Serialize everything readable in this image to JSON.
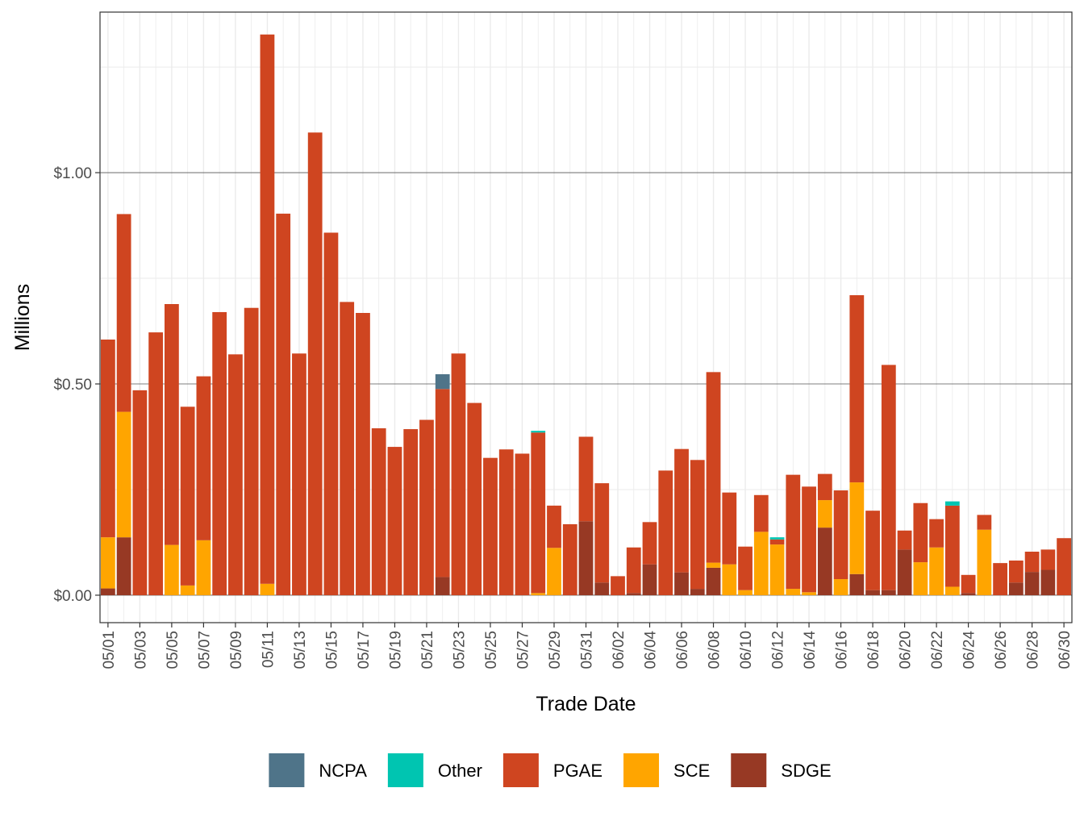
{
  "chart_data": {
    "type": "bar",
    "stacked": true,
    "xlabel": "Trade Date",
    "ylabel": "Millions",
    "ylim": [
      -0.065,
      1.38
    ],
    "yticks": [
      0,
      0.5,
      1.0
    ],
    "ytick_labels": [
      "$0.00",
      "$0.50",
      "$1.00"
    ],
    "grid": true,
    "legend_position": "bottom",
    "categories": [
      "05/01",
      "05/02",
      "05/03",
      "05/04",
      "05/05",
      "05/06",
      "05/07",
      "05/08",
      "05/09",
      "05/10",
      "05/11",
      "05/12",
      "05/13",
      "05/14",
      "05/15",
      "05/16",
      "05/17",
      "05/18",
      "05/19",
      "05/20",
      "05/21",
      "05/22",
      "05/23",
      "05/24",
      "05/25",
      "05/26",
      "05/27",
      "05/28",
      "05/29",
      "05/30",
      "05/31",
      "06/01",
      "06/02",
      "06/03",
      "06/04",
      "06/05",
      "06/06",
      "06/07",
      "06/08",
      "06/09",
      "06/10",
      "06/11",
      "06/12",
      "06/13",
      "06/14",
      "06/15",
      "06/16",
      "06/17",
      "06/18",
      "06/19",
      "06/20",
      "06/21",
      "06/22",
      "06/23",
      "06/24",
      "06/25",
      "06/26",
      "06/27",
      "06/28",
      "06/29",
      "06/30"
    ],
    "tick_labels": [
      "05/01",
      "05/03",
      "05/05",
      "05/07",
      "05/09",
      "05/11",
      "05/13",
      "05/15",
      "05/17",
      "05/19",
      "05/21",
      "05/23",
      "05/25",
      "05/27",
      "05/29",
      "05/31",
      "06/02",
      "06/04",
      "06/06",
      "06/08",
      "06/10",
      "06/12",
      "06/14",
      "06/16",
      "06/18",
      "06/20",
      "06/22",
      "06/24",
      "06/26",
      "06/28",
      "06/30"
    ],
    "series": [
      {
        "name": "SDGE",
        "color": "#973924",
        "values": [
          0.016,
          0.137,
          0,
          0,
          0,
          0,
          0,
          0,
          0,
          0,
          0,
          0,
          0,
          0,
          0,
          0,
          0,
          0,
          0,
          0,
          0,
          0.043,
          0,
          0,
          0,
          0,
          0,
          0,
          0,
          0,
          0.175,
          0.03,
          0,
          0.005,
          0.073,
          0,
          0.054,
          0.015,
          0.065,
          0,
          0,
          0,
          0,
          0,
          0,
          0.16,
          0,
          0.05,
          0.012,
          0.012,
          0.108,
          0,
          0,
          0,
          0.005,
          0,
          0,
          0.03,
          0.055,
          0.06,
          0
        ]
      },
      {
        "name": "SCE",
        "color": "#FFA500",
        "values": [
          0.121,
          0.297,
          0,
          0,
          0.119,
          0.023,
          0.13,
          0,
          0,
          0,
          0.027,
          0,
          0,
          0,
          0,
          0,
          0,
          0,
          0,
          0,
          0,
          0,
          0,
          0,
          0,
          0,
          0,
          0.005,
          0.112,
          0,
          0,
          0,
          0,
          0,
          0,
          0,
          0,
          0,
          0.012,
          0.073,
          0.012,
          0.15,
          0.12,
          0.015,
          0.007,
          0.065,
          0.038,
          0.217,
          0,
          0,
          0,
          0.078,
          0.113,
          0.02,
          0,
          0.155,
          0,
          0,
          0,
          0,
          0
        ]
      },
      {
        "name": "PGAE",
        "color": "#CF4520",
        "values": [
          0.468,
          0.468,
          0.485,
          0.622,
          0.57,
          0.423,
          0.388,
          0.67,
          0.57,
          0.68,
          1.3,
          0.903,
          0.572,
          1.095,
          0.858,
          0.694,
          0.668,
          0.395,
          0.351,
          0.393,
          0.415,
          0.445,
          0.572,
          0.455,
          0.325,
          0.345,
          0.335,
          0.38,
          0.1,
          0.168,
          0.2,
          0.235,
          0.045,
          0.108,
          0.1,
          0.295,
          0.292,
          0.305,
          0.451,
          0.17,
          0.103,
          0.087,
          0.012,
          0.27,
          0.25,
          0.062,
          0.21,
          0.443,
          0.188,
          0.533,
          0.045,
          0.14,
          0.067,
          0.192,
          0.043,
          0.035,
          0.076,
          0.052,
          0.048,
          0.048,
          0.135
        ]
      },
      {
        "name": "Other",
        "color": "#00C5B1",
        "values": [
          0,
          0,
          0,
          0,
          0,
          0,
          0,
          0,
          0,
          0,
          0,
          0,
          0,
          0,
          0,
          0,
          0,
          0,
          0,
          0,
          0,
          0,
          0,
          0,
          0,
          0,
          0,
          0.004,
          0,
          0,
          0,
          0,
          0,
          0,
          0,
          0,
          0,
          0,
          0,
          0,
          0,
          0,
          0.005,
          0,
          0,
          0,
          0,
          0,
          0,
          0,
          0,
          0,
          0,
          0.01,
          0,
          0,
          0,
          0,
          0,
          0,
          0
        ]
      },
      {
        "name": "NCPA",
        "color": "#4F7489",
        "values": [
          0,
          0,
          0,
          0,
          0,
          0,
          0,
          0,
          0,
          0,
          0,
          0,
          0,
          0,
          0,
          0,
          0,
          0,
          0,
          0,
          0,
          0.035,
          0,
          0,
          0,
          0,
          0,
          0,
          0,
          0,
          0,
          0,
          0,
          0,
          0,
          0,
          0,
          0,
          0,
          0,
          0,
          0,
          0,
          0,
          0,
          0,
          0,
          0,
          0,
          0,
          0,
          0,
          0,
          0,
          0,
          0,
          0,
          0,
          0,
          0,
          0
        ]
      }
    ],
    "legend_order": [
      "NCPA",
      "Other",
      "PGAE",
      "SCE",
      "SDGE"
    ]
  }
}
